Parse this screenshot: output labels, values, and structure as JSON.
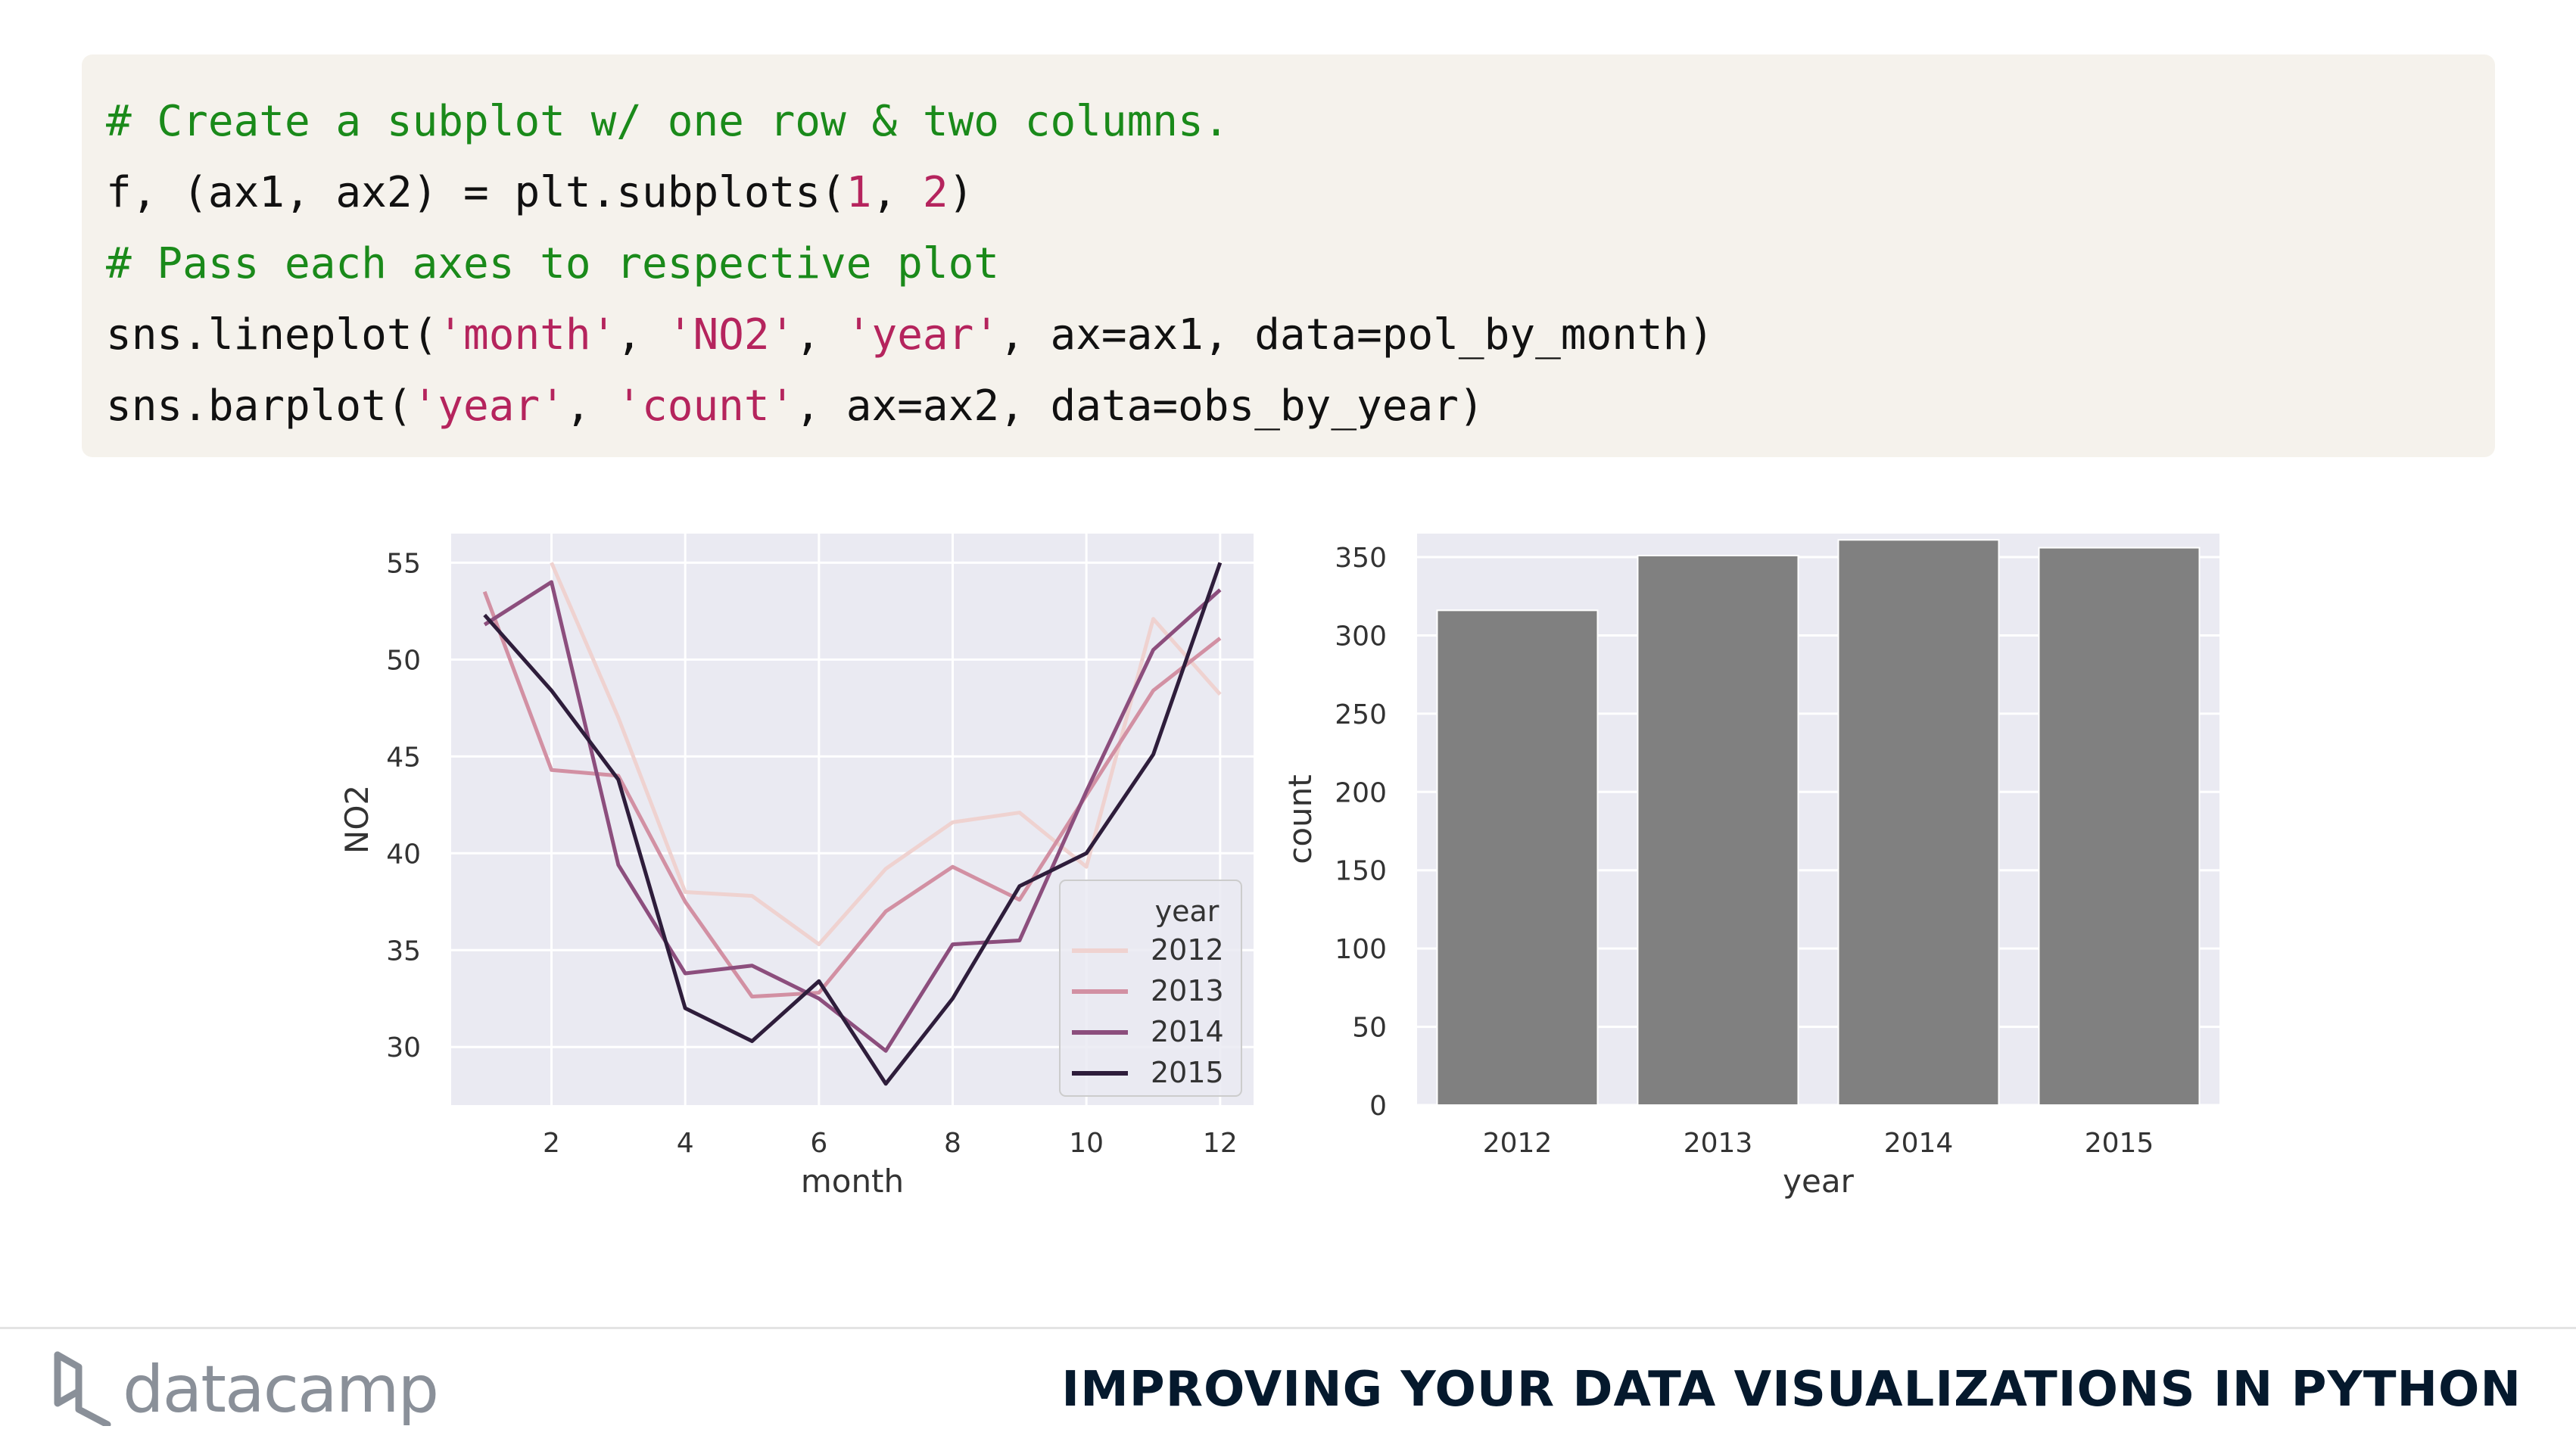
{
  "code": {
    "line1": "# Create a subplot w/ one row & two columns.",
    "line2": {
      "a": "f, (ax1, ax2) = plt.subplots(",
      "n1": "1",
      "sep": ", ",
      "n2": "2",
      "end": ")"
    },
    "line3": "# Pass each axes to respective plot",
    "line4": {
      "a": "sns.lineplot(",
      "s1": "'month'",
      "sep1": ", ",
      "s2": "'NO2'",
      "sep2": ", ",
      "s3": "'year'",
      "rest": ", ax=ax1, data=pol_by_month)"
    },
    "line5": {
      "a": "sns.barplot(",
      "s1": "'year'",
      "sep1": ", ",
      "s2": "'count'",
      "rest": ", ax=ax2, data=obs_by_year)"
    }
  },
  "footer": {
    "brand": "datacamp",
    "course_title": "IMPROVING YOUR DATA VISUALIZATIONS IN PYTHON"
  },
  "colors": {
    "plot_bg": "#eaeaf2",
    "bar": "#808080",
    "series": [
      "#efd2d0",
      "#d290a3",
      "#8c4e7d",
      "#2e1d3b"
    ]
  },
  "chart_data": [
    {
      "type": "line",
      "xlabel": "month",
      "ylabel": "NO2",
      "xlim": [
        0.5,
        12.5
      ],
      "ylim": [
        27,
        56.5
      ],
      "xticks": [
        2,
        4,
        6,
        8,
        10,
        12
      ],
      "yticks": [
        30,
        35,
        40,
        45,
        50,
        55
      ],
      "grid": true,
      "legend": {
        "title": "year",
        "placement": "bottom-right"
      },
      "x": [
        1,
        2,
        3,
        4,
        5,
        6,
        7,
        8,
        9,
        10,
        11,
        12
      ],
      "series": [
        {
          "name": "2012",
          "values": [
            null,
            55.0,
            47.0,
            38.0,
            37.8,
            35.3,
            39.2,
            41.6,
            42.1,
            39.3,
            52.1,
            48.2
          ]
        },
        {
          "name": "2013",
          "values": [
            53.5,
            44.3,
            44.0,
            37.5,
            32.6,
            32.8,
            37.0,
            39.3,
            37.6,
            43.0,
            48.4,
            51.1
          ]
        },
        {
          "name": "2014",
          "values": [
            51.8,
            54.0,
            39.4,
            33.8,
            34.2,
            32.5,
            29.8,
            35.3,
            35.5,
            43.2,
            50.5,
            53.6
          ]
        },
        {
          "name": "2015",
          "values": [
            52.3,
            48.4,
            43.8,
            32.0,
            30.3,
            33.4,
            28.1,
            32.5,
            38.3,
            40.0,
            45.1,
            55.0
          ]
        }
      ]
    },
    {
      "type": "bar",
      "xlabel": "year",
      "ylabel": "count",
      "ylim": [
        0,
        365
      ],
      "yticks": [
        0,
        50,
        100,
        150,
        200,
        250,
        300,
        350
      ],
      "grid": true,
      "categories": [
        "2012",
        "2013",
        "2014",
        "2015"
      ],
      "values": [
        316,
        351,
        361,
        356
      ]
    }
  ]
}
